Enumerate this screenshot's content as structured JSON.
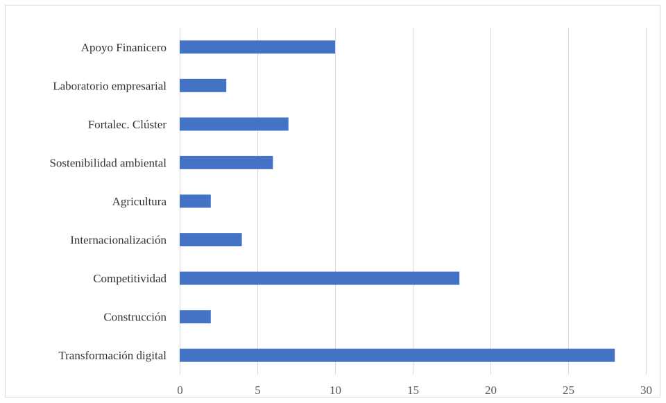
{
  "chart_data": {
    "type": "bar",
    "orientation": "horizontal",
    "categories": [
      "Apoyo Finanicero",
      "Laboratorio empresarial",
      "Fortalec. Clúster",
      "Sostenibilidad ambiental",
      "Agricultura",
      "Internacionalización",
      "Competitividad ",
      "Construcción",
      "Transformación digital"
    ],
    "values": [
      10,
      3,
      7,
      6,
      2,
      4,
      18,
      2,
      28
    ],
    "xlim": [
      0,
      30
    ],
    "xticks": [
      "0",
      "5",
      "10",
      "15",
      "20",
      "25",
      "30"
    ],
    "title": "",
    "xlabel": "",
    "ylabel": "",
    "grid": "vertical",
    "legend": "none",
    "bar_color": "#4472c4"
  }
}
